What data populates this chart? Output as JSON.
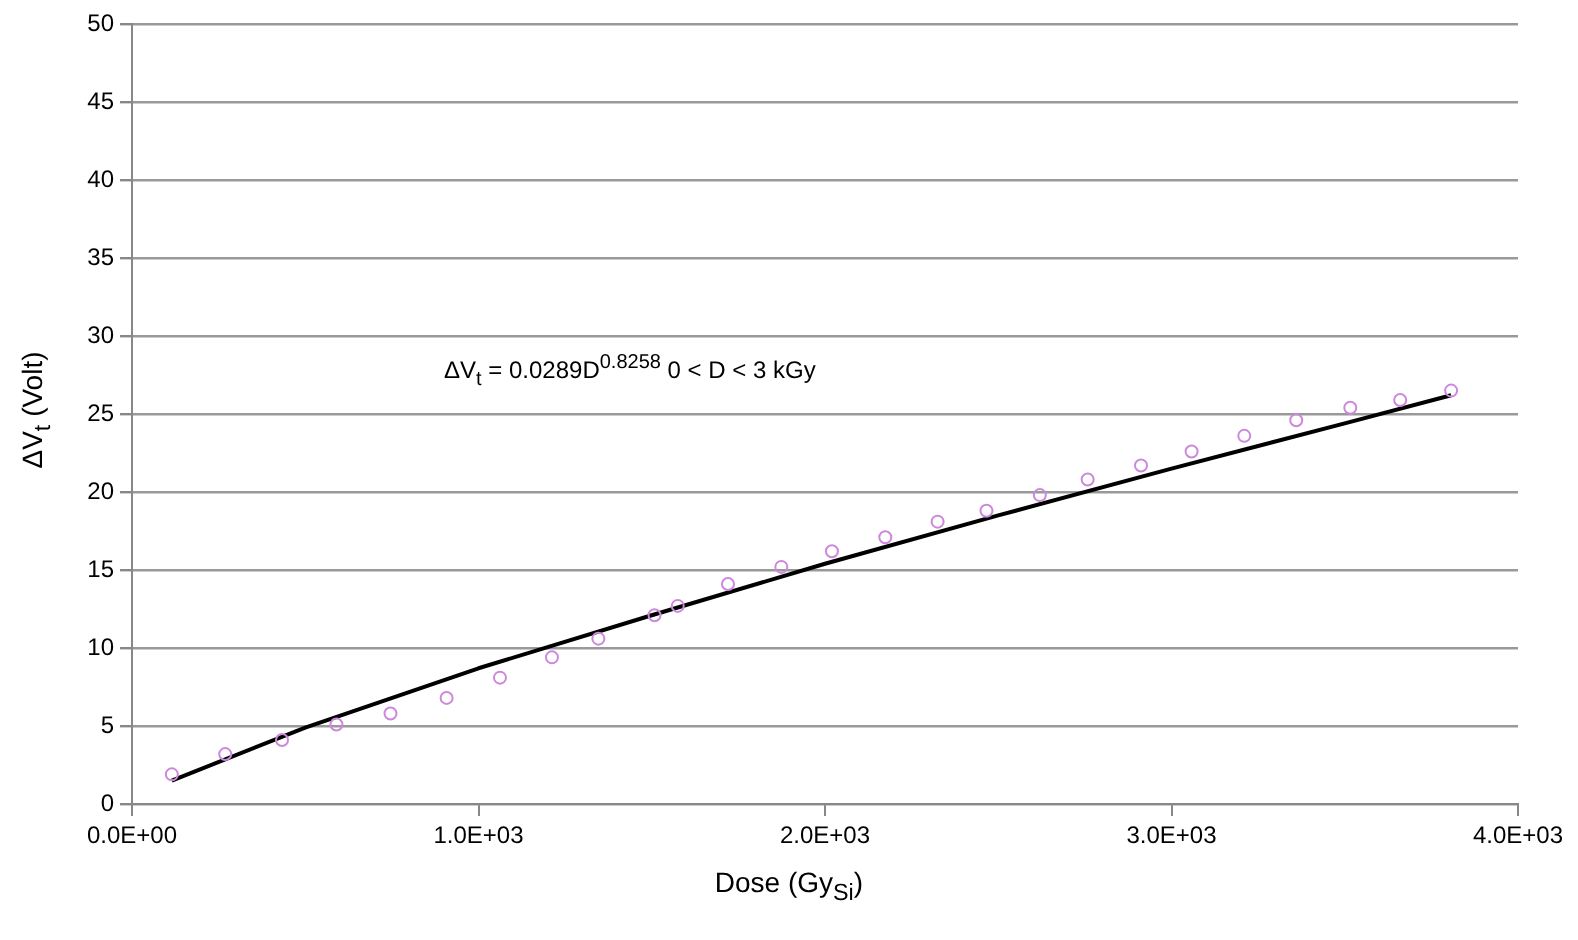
{
  "chart_data": {
    "type": "scatter",
    "xlabel": "Dose (Gy$_{Si}$)",
    "ylabel": "ΔV$_{t}$ (Volt)",
    "annotations": [
      "ΔV$_{t}$ = 0.0289D$^{0.8258}$  0 < D < 3 kGy"
    ],
    "xlim": [
      0,
      4000
    ],
    "xticks": [
      {
        "value": 0,
        "label": "0.0E+00"
      },
      {
        "value": 1000,
        "label": "1.0E+03"
      },
      {
        "value": 2000,
        "label": "2.0E+03"
      },
      {
        "value": 3000,
        "label": "3.0E+03"
      },
      {
        "value": 4000,
        "label": "4.0E+03"
      }
    ],
    "ylim": [
      0,
      50
    ],
    "yticks": [
      0,
      5,
      10,
      15,
      20,
      25,
      30,
      35,
      40,
      45,
      50
    ],
    "grid": "y",
    "legend": false,
    "series": [
      {
        "type": "scatter",
        "marker": "circle",
        "color": "#cc88dd",
        "x": [
          115,
          269,
          433,
          590,
          746,
          908,
          1062,
          1212,
          1346,
          1508,
          1575,
          1720,
          1874,
          2020,
          2174,
          2325,
          2466,
          2620,
          2758,
          2912,
          3058,
          3210,
          3360,
          3516,
          3660,
          3807
        ],
        "values": [
          1.9,
          3.2,
          4.1,
          5.1,
          5.8,
          6.8,
          8.1,
          9.4,
          10.6,
          12.1,
          12.7,
          14.1,
          15.2,
          16.2,
          17.1,
          18.1,
          18.8,
          19.8,
          20.8,
          21.7,
          22.6,
          23.6,
          24.6,
          25.4,
          25.9,
          26.5
        ]
      },
      {
        "type": "line",
        "marker": "none",
        "color": "#000000",
        "x": [
          115,
          500,
          1000,
          1500,
          2000,
          2500,
          3000,
          3500,
          3807
        ],
        "values": [
          1.5,
          4.9,
          8.7,
          12.1,
          15.4,
          18.5,
          21.5,
          24.4,
          26.2
        ]
      }
    ]
  }
}
